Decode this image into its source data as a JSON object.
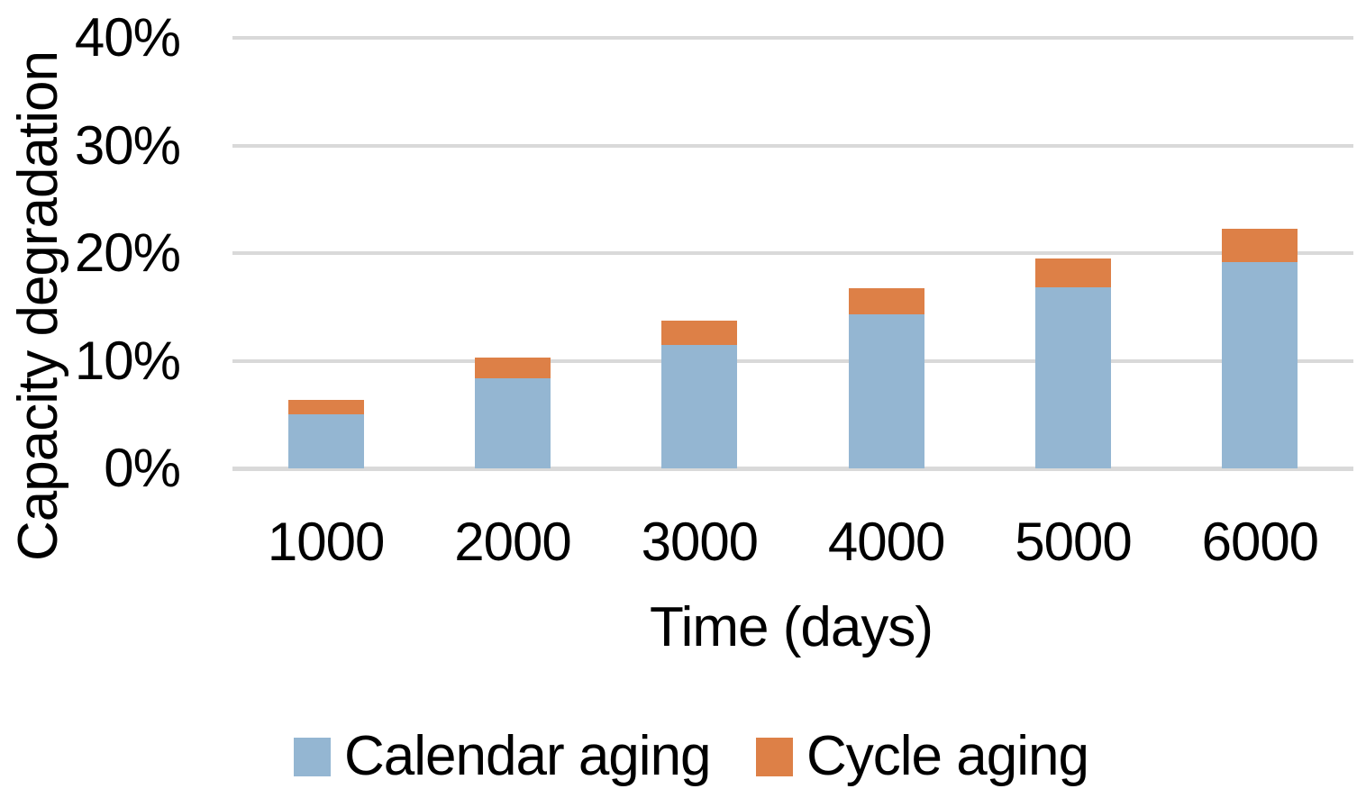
{
  "chart_data": {
    "type": "bar",
    "stacked": true,
    "title": "",
    "xlabel": "Time (days)",
    "ylabel": "Capacity degradation",
    "categories": [
      "1000",
      "2000",
      "3000",
      "4000",
      "5000",
      "6000"
    ],
    "series": [
      {
        "name": "Calendar aging",
        "color": "#94B6D2",
        "values": [
          5.0,
          8.4,
          11.5,
          14.3,
          16.8,
          19.2
        ]
      },
      {
        "name": "Cycle aging",
        "color": "#DD8047",
        "values": [
          1.4,
          1.9,
          2.2,
          2.4,
          2.7,
          3.1
        ]
      }
    ],
    "stacked_totals": [
      6.4,
      10.3,
      13.7,
      16.7,
      19.5,
      22.3
    ],
    "ylim": [
      0,
      40
    ],
    "ytick_step": 10,
    "ytick_labels": [
      "0%",
      "10%",
      "20%",
      "30%",
      "40%"
    ],
    "grid": true,
    "gridline_color": "#D9D9D9",
    "text_color": "#000000",
    "legend_position": "bottom"
  }
}
